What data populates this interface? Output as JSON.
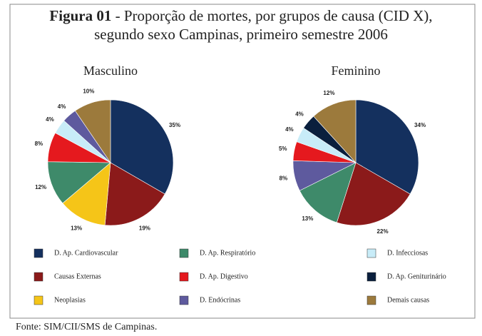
{
  "figure_label": "Figura 01",
  "title_line1": "- Proporção de mortes, por grupos de causa (CID X),",
  "title_line2": "segundo sexo Campinas, primeiro semestre 2006",
  "legend": [
    {
      "name": "D. Ap. Cardiovascular",
      "color": "#14305e"
    },
    {
      "name": "D. Ap. Respiratório",
      "color": "#3e8a6a"
    },
    {
      "name": "D. Infecciosas",
      "color": "#c8ecf8"
    },
    {
      "name": "Causas Externas",
      "color": "#8b1a1a"
    },
    {
      "name": "D. Ap. Digestivo",
      "color": "#e5191e"
    },
    {
      "name": "D. Ap. Geniturinário",
      "color": "#0a1f3d"
    },
    {
      "name": "Neoplasias",
      "color": "#f5c518"
    },
    {
      "name": "D. Endócrinas",
      "color": "#5e5a9e"
    },
    {
      "name": "Demais causas",
      "color": "#9c7a3c"
    }
  ],
  "chart_data": [
    {
      "type": "pie",
      "title": "Masculino",
      "categories": [
        "D. Ap. Cardiovascular",
        "Causas Externas",
        "Neoplasias",
        "D. Ap. Respiratório",
        "D. Ap. Digestivo",
        "D. Infecciosas",
        "D. Endócrinas",
        "Demais causas"
      ],
      "values": [
        35,
        19,
        13,
        12,
        8,
        4,
        4,
        10
      ],
      "value_labels": [
        "35%",
        "19%",
        "13%",
        "12%",
        "8%",
        "4%",
        "4%",
        "10%"
      ]
    },
    {
      "type": "pie",
      "title": "Feminino",
      "categories": [
        "D. Ap. Cardiovascular",
        "Causas Externas",
        "D. Ap. Respiratório",
        "D. Endócrinas",
        "D. Ap. Digestivo",
        "D. Infecciosas",
        "D. Ap. Geniturinário",
        "Demais causas"
      ],
      "values": [
        34,
        22,
        13,
        8,
        5,
        4,
        4,
        12
      ],
      "value_labels": [
        "34%",
        "22%",
        "13%",
        "8%",
        "5%",
        "4%",
        "4%",
        "12%"
      ]
    }
  ],
  "source": "Fonte: SIM/CII/SMS de Campinas."
}
